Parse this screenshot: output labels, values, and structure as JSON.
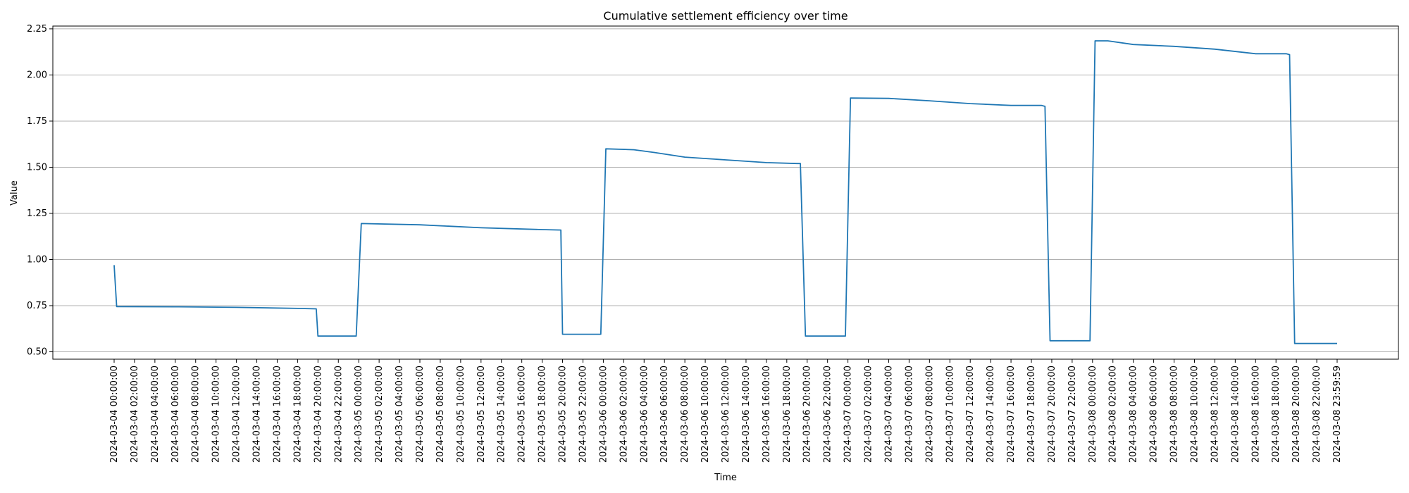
{
  "chart_data": {
    "type": "line",
    "title": "Cumulative settlement efficiency over time",
    "xlabel": "Time",
    "ylabel": "Value",
    "ylim": [
      0.46,
      2.265
    ],
    "yticks": [
      "0.50",
      "0.75",
      "1.00",
      "1.25",
      "1.50",
      "1.75",
      "2.00",
      "2.25"
    ],
    "ytick_values": [
      0.5,
      0.75,
      1.0,
      1.25,
      1.5,
      1.75,
      2.0,
      2.25
    ],
    "grid": "horizontal",
    "line_color": "#1f77b4",
    "x_start": "2024-03-04 00:00:00",
    "x_end": "2024-03-08 23:59:59",
    "xticks": [
      "2024-03-04 00:00:00",
      "2024-03-04 02:00:00",
      "2024-03-04 04:00:00",
      "2024-03-04 06:00:00",
      "2024-03-04 08:00:00",
      "2024-03-04 10:00:00",
      "2024-03-04 12:00:00",
      "2024-03-04 14:00:00",
      "2024-03-04 16:00:00",
      "2024-03-04 18:00:00",
      "2024-03-04 20:00:00",
      "2024-03-04 22:00:00",
      "2024-03-05 00:00:00",
      "2024-03-05 02:00:00",
      "2024-03-05 04:00:00",
      "2024-03-05 06:00:00",
      "2024-03-05 08:00:00",
      "2024-03-05 10:00:00",
      "2024-03-05 12:00:00",
      "2024-03-05 14:00:00",
      "2024-03-05 16:00:00",
      "2024-03-05 18:00:00",
      "2024-03-05 20:00:00",
      "2024-03-05 22:00:00",
      "2024-03-06 00:00:00",
      "2024-03-06 02:00:00",
      "2024-03-06 04:00:00",
      "2024-03-06 06:00:00",
      "2024-03-06 08:00:00",
      "2024-03-06 10:00:00",
      "2024-03-06 12:00:00",
      "2024-03-06 14:00:00",
      "2024-03-06 16:00:00",
      "2024-03-06 18:00:00",
      "2024-03-06 20:00:00",
      "2024-03-06 22:00:00",
      "2024-03-07 00:00:00",
      "2024-03-07 02:00:00",
      "2024-03-07 04:00:00",
      "2024-03-07 06:00:00",
      "2024-03-07 08:00:00",
      "2024-03-07 10:00:00",
      "2024-03-07 12:00:00",
      "2024-03-07 14:00:00",
      "2024-03-07 16:00:00",
      "2024-03-07 18:00:00",
      "2024-03-07 20:00:00",
      "2024-03-07 22:00:00",
      "2024-03-08 00:00:00",
      "2024-03-08 02:00:00",
      "2024-03-08 04:00:00",
      "2024-03-08 06:00:00",
      "2024-03-08 08:00:00",
      "2024-03-08 10:00:00",
      "2024-03-08 12:00:00",
      "2024-03-08 14:00:00",
      "2024-03-08 16:00:00",
      "2024-03-08 18:00:00",
      "2024-03-08 20:00:00",
      "2024-03-08 22:00:00",
      "2024-03-08 23:59:59"
    ],
    "series": [
      {
        "points": [
          [
            "2024-03-04 00:00:00",
            0.97
          ],
          [
            "2024-03-04 00:15:00",
            0.745
          ],
          [
            "2024-03-04 06:00:00",
            0.744
          ],
          [
            "2024-03-04 12:00:00",
            0.741
          ],
          [
            "2024-03-04 18:00:00",
            0.735
          ],
          [
            "2024-03-04 19:50:00",
            0.733
          ],
          [
            "2024-03-04 20:00:00",
            0.585
          ],
          [
            "2024-03-04 23:45:00",
            0.585
          ],
          [
            "2024-03-05 00:15:00",
            1.195
          ],
          [
            "2024-03-05 06:00:00",
            1.188
          ],
          [
            "2024-03-05 12:00:00",
            1.172
          ],
          [
            "2024-03-05 18:00:00",
            1.162
          ],
          [
            "2024-03-05 19:50:00",
            1.16
          ],
          [
            "2024-03-05 20:00:00",
            0.595
          ],
          [
            "2024-03-05 23:45:00",
            0.595
          ],
          [
            "2024-03-06 00:15:00",
            1.6
          ],
          [
            "2024-03-06 03:00:00",
            1.595
          ],
          [
            "2024-03-06 05:00:00",
            1.58
          ],
          [
            "2024-03-06 08:00:00",
            1.555
          ],
          [
            "2024-03-06 12:00:00",
            1.54
          ],
          [
            "2024-03-06 16:00:00",
            1.525
          ],
          [
            "2024-03-06 19:00:00",
            1.52
          ],
          [
            "2024-03-06 19:20:00",
            1.52
          ],
          [
            "2024-03-06 19:50:00",
            0.585
          ],
          [
            "2024-03-06 23:45:00",
            0.585
          ],
          [
            "2024-03-07 00:15:00",
            1.875
          ],
          [
            "2024-03-07 04:00:00",
            1.873
          ],
          [
            "2024-03-07 08:00:00",
            1.86
          ],
          [
            "2024-03-07 12:00:00",
            1.845
          ],
          [
            "2024-03-07 16:00:00",
            1.835
          ],
          [
            "2024-03-07 19:00:00",
            1.835
          ],
          [
            "2024-03-07 19:20:00",
            1.83
          ],
          [
            "2024-03-07 19:50:00",
            0.56
          ],
          [
            "2024-03-07 23:45:00",
            0.56
          ],
          [
            "2024-03-08 00:15:00",
            2.185
          ],
          [
            "2024-03-08 01:30:00",
            2.185
          ],
          [
            "2024-03-08 04:00:00",
            2.165
          ],
          [
            "2024-03-08 08:00:00",
            2.155
          ],
          [
            "2024-03-08 12:00:00",
            2.14
          ],
          [
            "2024-03-08 16:00:00",
            2.115
          ],
          [
            "2024-03-08 19:00:00",
            2.115
          ],
          [
            "2024-03-08 19:20:00",
            2.11
          ],
          [
            "2024-03-08 19:50:00",
            0.545
          ],
          [
            "2024-03-08 23:59:59",
            0.545
          ]
        ]
      }
    ]
  }
}
